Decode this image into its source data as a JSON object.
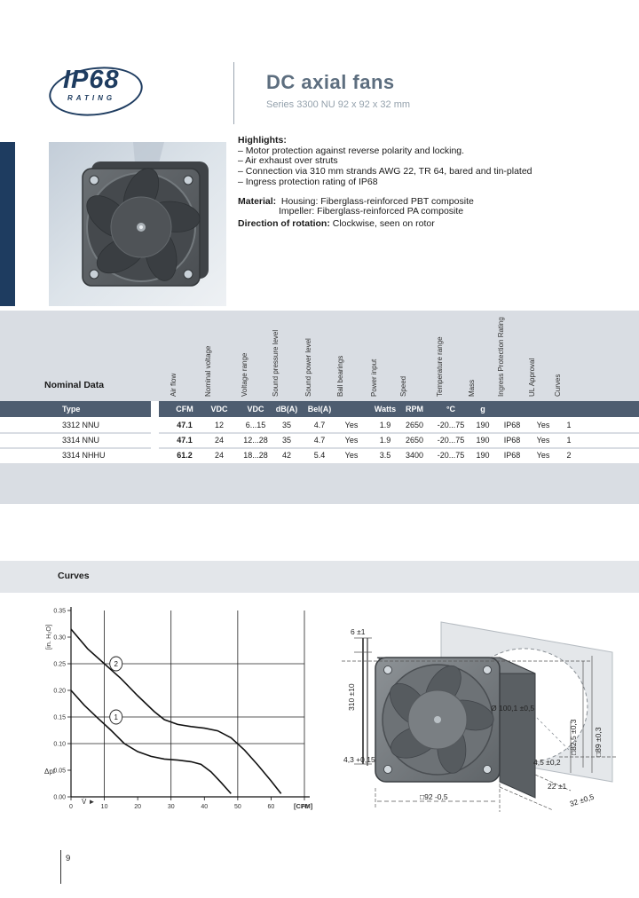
{
  "logo": {
    "line1": "IP68",
    "line2": "RATING"
  },
  "header": {
    "title": "DC axial fans",
    "subtitle": "Series 3300 NU  92 x 92 x 32 mm"
  },
  "highlights": {
    "heading": "Highlights:",
    "bullets": [
      "– Motor protection against reverse polarity and locking.",
      "– Air exhaust over struts",
      "– Connection via 310 mm strands AWG 22, TR 64, bared and tin-plated",
      "– Ingress protection rating of IP68"
    ],
    "material_label": "Material:",
    "material_lines": [
      "Housing: Fiberglass-reinforced PBT composite",
      "Impeller: Fiberglass-reinforced PA composite"
    ],
    "rotation_label": "Direction of rotation:",
    "rotation_value": "Clockwise, seen on rotor"
  },
  "table": {
    "section_label": "Nominal Data",
    "rotated_headers": [
      "Air flow",
      "Nominal voltage",
      "Voltage range",
      "Sound pressure level",
      "Sound power level",
      "Ball bearings",
      "Power input",
      "Speed",
      "Temperature range",
      "Mass",
      "Ingress Protection Rating",
      "UL Approval",
      "Curves"
    ],
    "type_header": "Type",
    "unit_row": [
      "CFM",
      "VDC",
      "VDC",
      "dB(A)",
      "Bel(A)",
      "",
      "Watts",
      "RPM",
      "°C",
      "g",
      "",
      "",
      ""
    ],
    "rows": [
      {
        "type": "3312 NNU",
        "values": [
          "47.1",
          "12",
          "6...15",
          "35",
          "4.7",
          "Yes",
          "1.9",
          "2650",
          "-20...75",
          "190",
          "IP68",
          "Yes",
          "1"
        ]
      },
      {
        "type": "3314 NNU",
        "values": [
          "47.1",
          "24",
          "12...28",
          "35",
          "4.7",
          "Yes",
          "1.9",
          "2650",
          "-20...75",
          "190",
          "IP68",
          "Yes",
          "1"
        ]
      },
      {
        "type": "3314 NHHU",
        "values": [
          "61.2",
          "24",
          "18...28",
          "42",
          "5.4",
          "Yes",
          "3.5",
          "3400",
          "-20...75",
          "190",
          "IP68",
          "Yes",
          "2"
        ]
      }
    ]
  },
  "curves_section": {
    "heading": "Curves"
  },
  "chart_data": {
    "type": "line",
    "title": "",
    "xlabel": "[CFM]",
    "ylabel": "[in. H₂O]",
    "y_axis_symbol": "Δpf",
    "x_axis_symbol": "V̇ ►",
    "xlim": [
      0,
      70
    ],
    "ylim": [
      0,
      0.35
    ],
    "x_ticks": [
      0,
      10,
      20,
      30,
      40,
      50,
      60,
      70
    ],
    "y_ticks": [
      0,
      0.05,
      0.1,
      0.15,
      0.2,
      0.25,
      0.3,
      0.35
    ],
    "v_gridlines": [
      10,
      30,
      50,
      70
    ],
    "h_gridlines": [
      0.1,
      0.15,
      0.25
    ],
    "grid": true,
    "legend_position": "on-curve",
    "series": [
      {
        "name": "1",
        "label_pos": [
          13.5,
          0.15
        ],
        "points": [
          [
            0,
            0.2
          ],
          [
            4,
            0.172
          ],
          [
            8,
            0.148
          ],
          [
            12,
            0.125
          ],
          [
            16,
            0.1
          ],
          [
            20,
            0.085
          ],
          [
            24,
            0.076
          ],
          [
            28,
            0.071
          ],
          [
            32,
            0.069
          ],
          [
            36,
            0.066
          ],
          [
            39,
            0.061
          ],
          [
            42,
            0.047
          ],
          [
            45,
            0.027
          ],
          [
            48,
            0.006
          ]
        ]
      },
      {
        "name": "2",
        "label_pos": [
          13.5,
          0.25
        ],
        "points": [
          [
            0,
            0.315
          ],
          [
            5,
            0.278
          ],
          [
            10,
            0.25
          ],
          [
            15,
            0.222
          ],
          [
            20,
            0.19
          ],
          [
            25,
            0.16
          ],
          [
            28,
            0.145
          ],
          [
            32,
            0.136
          ],
          [
            36,
            0.132
          ],
          [
            40,
            0.129
          ],
          [
            44,
            0.124
          ],
          [
            48,
            0.111
          ],
          [
            52,
            0.088
          ],
          [
            56,
            0.06
          ],
          [
            60,
            0.03
          ],
          [
            63,
            0.006
          ]
        ]
      }
    ]
  },
  "drawing": {
    "dim_strip": "6 ±1",
    "dim_wire": "310 ±10",
    "dim_hole": "4,3 +0,15",
    "dim_width": "□92 -0,5",
    "dim_spacer": "4,5 ±0,2",
    "dim_depth_inner": "22 ±1",
    "dim_depth": "32 ±0,5",
    "dim_cutout": "Ø 100,1 ±0,5",
    "dim_holes_square": "□82,5 ±0,3",
    "dim_outer_square": "□89 ±0,3"
  },
  "footer": {
    "page": "9"
  },
  "colors": {
    "navy": "#1e3c60",
    "header_slate": "#4e5d70",
    "band": "#d9dde3",
    "curves_band": "#e3e6ea",
    "title_gray": "#5d6e7f"
  }
}
